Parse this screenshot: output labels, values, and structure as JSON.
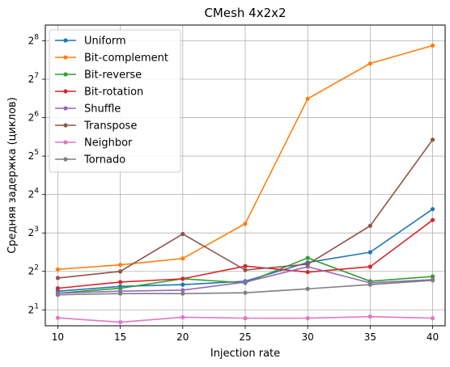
{
  "chart_data": {
    "type": "line",
    "title": "CMesh 4x2x2",
    "xlabel": "Injection rate",
    "ylabel": "Средняя задержка (циклов)",
    "x": [
      10,
      15,
      20,
      25,
      30,
      35,
      40
    ],
    "xlim": [
      9,
      41
    ],
    "x_ticks": [
      10,
      15,
      20,
      25,
      30,
      35,
      40
    ],
    "yscale": "log2",
    "ylim": [
      1.5,
      340
    ],
    "y_tick_base": "2",
    "y_tick_exponents": [
      1,
      2,
      3,
      4,
      5,
      6,
      7,
      8
    ],
    "grid": true,
    "legend_position": "upper-left",
    "series": [
      {
        "name": "Uniform",
        "color": "#1f77b4",
        "values": [
          2.8,
          3.05,
          3.15,
          3.35,
          4.7,
          5.65,
          12.3
        ]
      },
      {
        "name": "Bit-complement",
        "color": "#ff7f0e",
        "values": [
          4.15,
          4.5,
          5.05,
          9.45,
          90.0,
          170.0,
          235.0
        ]
      },
      {
        "name": "Bit-reverse",
        "color": "#2ca02c",
        "values": [
          2.7,
          2.95,
          3.5,
          3.25,
          5.1,
          3.35,
          3.65
        ]
      },
      {
        "name": "Bit-rotation",
        "color": "#d62728",
        "values": [
          2.95,
          3.3,
          3.5,
          4.4,
          3.95,
          4.35,
          10.1
        ]
      },
      {
        "name": "Shuffle",
        "color": "#9467bd",
        "values": [
          2.7,
          2.8,
          2.85,
          3.3,
          4.35,
          3.25,
          3.45
        ]
      },
      {
        "name": "Transpose",
        "color": "#8c564b",
        "values": [
          3.55,
          4.0,
          7.85,
          4.1,
          4.55,
          9.1,
          43.0
        ]
      },
      {
        "name": "Neighbor",
        "color": "#e377c2",
        "values": [
          1.73,
          1.6,
          1.75,
          1.72,
          1.72,
          1.77,
          1.72
        ]
      },
      {
        "name": "Tornado",
        "color": "#7f7f7f",
        "values": [
          2.62,
          2.68,
          2.68,
          2.72,
          2.92,
          3.15,
          3.4
        ]
      }
    ]
  }
}
